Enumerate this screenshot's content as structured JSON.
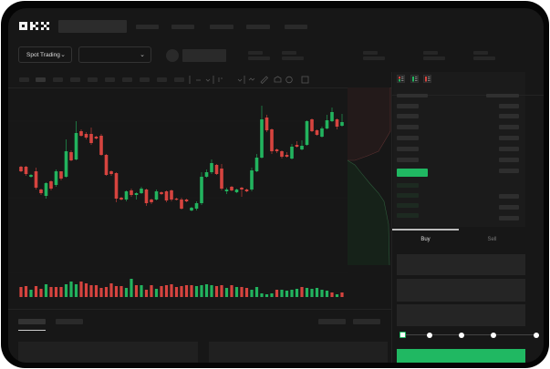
{
  "brand": {
    "logo": "OKX"
  },
  "toolbar": {
    "market_selector": "Spot Trading",
    "pair_selector": ""
  },
  "order_form": {
    "tabs": [
      {
        "label": "Buy",
        "active": true
      },
      {
        "label": "Sell",
        "active": false
      }
    ],
    "slider_percent": 0,
    "slider_stops": [
      0,
      25,
      50,
      75,
      100
    ]
  },
  "orderbook": {
    "view_icons": [
      "book-both-icon",
      "book-bids-icon",
      "book-asks-icon"
    ]
  },
  "colors": {
    "up": "#22b35e",
    "down": "#d6443f",
    "background": "#171717",
    "accent": "#20b862"
  },
  "chart_data": {
    "type": "candlestick",
    "candles": [
      [
        68,
        63,
        69,
        62
      ],
      [
        68,
        60,
        69,
        58
      ],
      [
        57,
        59,
        60,
        56
      ],
      [
        63,
        45,
        67,
        43
      ],
      [
        43,
        39,
        44,
        37
      ],
      [
        36,
        50,
        51,
        33
      ],
      [
        52,
        44,
        53,
        42
      ],
      [
        48,
        63,
        65,
        46
      ],
      [
        63,
        55,
        63,
        53
      ],
      [
        57,
        85,
        98,
        56
      ],
      [
        84,
        75,
        86,
        74
      ],
      [
        76,
        105,
        118,
        75
      ],
      [
        107,
        102,
        109,
        101
      ],
      [
        104,
        100,
        106,
        98
      ],
      [
        104,
        94,
        111,
        92
      ],
      [
        101,
        99,
        102,
        98
      ],
      [
        102,
        81,
        104,
        80
      ],
      [
        81,
        59,
        82,
        58
      ],
      [
        63,
        60,
        64,
        58
      ],
      [
        61,
        33,
        62,
        29
      ],
      [
        34,
        32,
        35,
        31
      ],
      [
        32,
        41,
        42,
        30
      ],
      [
        42,
        37,
        44,
        35
      ],
      [
        37,
        39,
        40,
        32
      ],
      [
        39,
        44,
        46,
        38
      ],
      [
        43,
        28,
        44,
        25
      ],
      [
        32,
        29,
        33,
        27
      ],
      [
        32,
        41,
        43,
        31
      ],
      [
        40,
        38,
        41,
        37
      ],
      [
        41,
        31,
        42,
        29
      ],
      [
        42,
        32,
        43,
        30
      ],
      [
        33,
        32,
        34,
        31
      ],
      [
        32,
        22,
        34,
        21
      ],
      [
        32,
        30,
        33,
        29
      ],
      [
        20,
        23,
        24,
        19
      ],
      [
        22,
        28,
        30,
        20
      ],
      [
        28,
        57,
        62,
        26
      ],
      [
        57,
        62,
        65,
        56
      ],
      [
        62,
        72,
        76,
        60
      ],
      [
        70,
        60,
        71,
        59
      ],
      [
        66,
        44,
        71,
        42
      ],
      [
        41,
        43,
        45,
        38
      ],
      [
        46,
        42,
        47,
        41
      ],
      [
        40,
        43,
        44,
        39
      ],
      [
        45,
        43,
        46,
        35
      ],
      [
        43,
        41,
        44,
        40
      ],
      [
        43,
        64,
        67,
        41
      ],
      [
        63,
        78,
        82,
        62
      ],
      [
        78,
        120,
        135,
        77
      ],
      [
        122,
        108,
        125,
        106
      ],
      [
        109,
        85,
        110,
        82
      ],
      [
        87,
        85,
        88,
        83
      ],
      [
        85,
        79,
        86,
        77
      ],
      [
        81,
        79,
        84,
        78
      ],
      [
        77,
        90,
        93,
        76
      ],
      [
        92,
        90,
        96,
        89
      ],
      [
        87,
        91,
        97,
        86
      ],
      [
        92,
        118,
        119,
        91
      ],
      [
        120,
        107,
        121,
        106
      ],
      [
        108,
        103,
        109,
        102
      ],
      [
        101,
        110,
        112,
        100
      ],
      [
        110,
        119,
        125,
        109
      ],
      [
        118,
        128,
        133,
        117
      ],
      [
        120,
        112,
        121,
        109
      ],
      [
        113,
        117,
        126,
        112
      ]
    ],
    "candle_fields": [
      "open",
      "close",
      "high",
      "low"
    ],
    "volume": [
      11,
      12,
      8,
      12,
      9,
      14,
      11,
      11,
      11,
      14,
      17,
      14,
      17,
      15,
      13,
      13,
      10,
      11,
      15,
      12,
      12,
      10,
      20,
      13,
      13,
      8,
      13,
      9,
      12,
      13,
      14,
      11,
      12,
      13,
      13,
      12,
      13,
      14,
      13,
      12,
      13,
      10,
      13,
      11,
      11,
      10,
      8,
      11,
      4,
      3,
      4,
      8,
      8,
      7,
      8,
      9,
      11,
      10,
      9,
      10,
      8,
      7,
      5,
      3,
      5
    ],
    "volume_up": [
      0,
      0,
      1,
      0,
      0,
      1,
      0,
      0,
      0,
      1,
      1,
      1,
      0,
      0,
      0,
      0,
      0,
      0,
      0,
      0,
      0,
      1,
      1,
      0,
      1,
      0,
      0,
      1,
      0,
      0,
      0,
      0,
      0,
      0,
      0,
      1,
      1,
      1,
      1,
      0,
      0,
      1,
      0,
      1,
      0,
      0,
      1,
      1,
      1,
      1,
      1,
      0,
      1,
      1,
      1,
      1,
      0,
      1,
      1,
      1,
      1,
      1,
      0,
      1,
      0
    ]
  }
}
